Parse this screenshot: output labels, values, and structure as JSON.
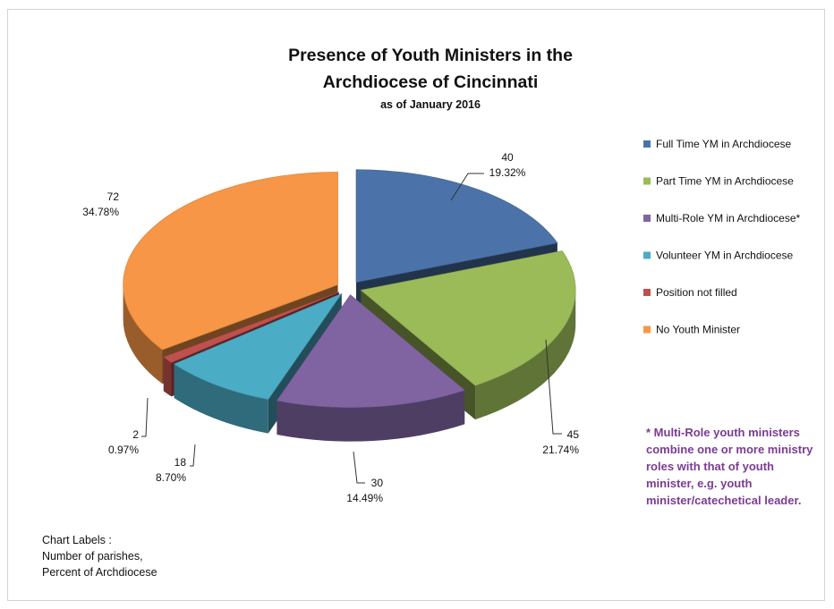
{
  "chart_data": {
    "type": "pie",
    "title": "Presence of Youth Ministers in the Archdiocese of Cincinnati",
    "title_lines": [
      "Presence of Youth Ministers in the",
      "Archdiocese of Cincinnati"
    ],
    "subtitle": "as of January 2016",
    "legend_position": "right",
    "exploded": true,
    "three_d": true,
    "categories": [
      "Full Time YM in Archdiocese",
      "Part Time YM in Archdiocese",
      "Multi-Role YM in Archdiocese*",
      "Volunteer YM in Archdiocese",
      "Position not filled",
      "No Youth Minister"
    ],
    "values": [
      40,
      45,
      30,
      18,
      2,
      72
    ],
    "percent_labels": [
      "19.32%",
      "21.74%",
      "14.49%",
      "8.70%",
      "0.97%",
      "34.78%"
    ],
    "colors": [
      "#4b73a9",
      "#9bbb59",
      "#8064a2",
      "#4bacc6",
      "#c0504d",
      "#f79646"
    ]
  },
  "note_lines": [
    "* Multi-Role youth ministers",
    "combine one or more ministry",
    "roles with that of youth",
    "minister, e.g. youth",
    "minister/catechetical leader."
  ],
  "footer_lines": [
    "Chart Labels :",
    "Number of parishes,",
    "Percent of Archdiocese"
  ]
}
